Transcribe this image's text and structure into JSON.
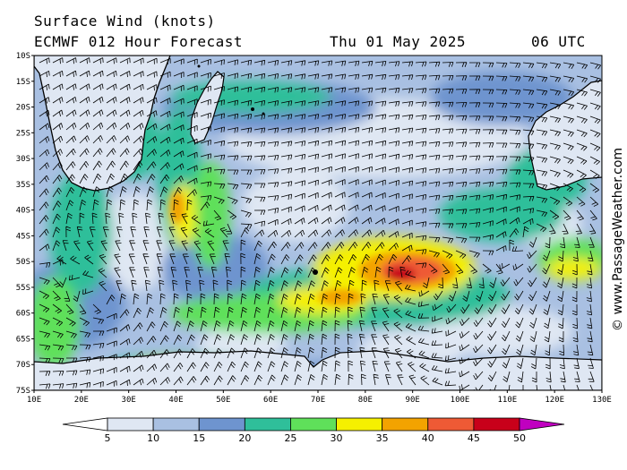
{
  "header": {
    "title": "Surface Wind (knots)",
    "model_line": "ECMWF 012 Hour Forecast",
    "date": "Thu 01 May 2025",
    "time": "06 UTC"
  },
  "credit": "© www.PassageWeather.com",
  "axes": {
    "lat_labels": [
      "10S",
      "15S",
      "20S",
      "25S",
      "30S",
      "35S",
      "40S",
      "45S",
      "50S",
      "55S",
      "60S",
      "65S",
      "70S",
      "75S"
    ],
    "lon_labels": [
      "10E",
      "20E",
      "30E",
      "40E",
      "50E",
      "60E",
      "70E",
      "80E",
      "90E",
      "100E",
      "110E",
      "120E",
      "130E"
    ]
  },
  "legend": {
    "labels": [
      "5",
      "10",
      "15",
      "20",
      "25",
      "30",
      "35",
      "40",
      "45",
      "50"
    ],
    "colors": [
      "#ffffff",
      "#dfe7f3",
      "#a9c0e2",
      "#6e94cf",
      "#2fbf9a",
      "#5fe05a",
      "#f5f000",
      "#f3a300",
      "#ee5a35",
      "#c8001a",
      "#c000c0"
    ]
  },
  "palette": {
    "water_light": "#dfe7f3",
    "water_mid": "#a9c0e2",
    "water_blue": "#6e94cf",
    "teal": "#2fbf9a",
    "green": "#5fe05a",
    "yellow": "#f5f000",
    "orange": "#f3a300",
    "red": "#ee5a35",
    "darkred": "#c8001a",
    "land": "#ffffff"
  }
}
